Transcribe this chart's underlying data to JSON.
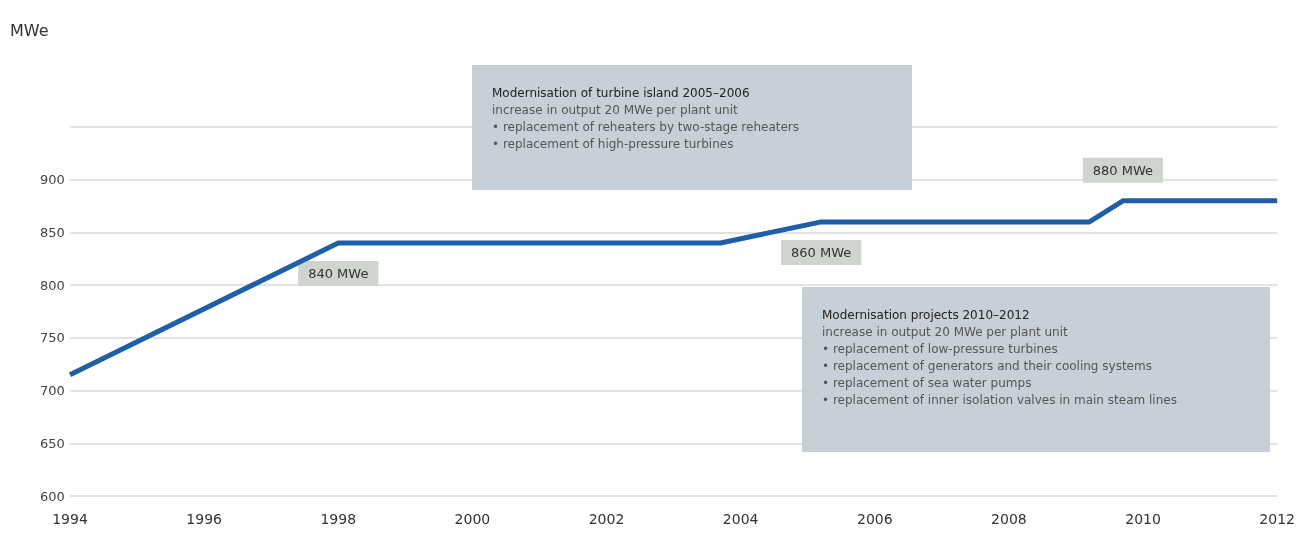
{
  "chart_data": {
    "type": "line",
    "x": [
      1994,
      1998,
      2003.7,
      2005.2,
      2009.2,
      2009.7,
      2012
    ],
    "series": [
      {
        "color": "#1f5fa8",
        "values": [
          715,
          840,
          840,
          860,
          860,
          880,
          880
        ]
      }
    ],
    "xlim": [
      1994,
      2012
    ],
    "xticks": [
      1994,
      1996,
      1998,
      2000,
      2002,
      2004,
      2006,
      2008,
      2010,
      2012
    ],
    "ylim": [
      600,
      950
    ],
    "yticks": [
      600,
      650,
      700,
      750,
      800,
      850,
      900,
      {
        "value": 950,
        "label": null
      }
    ],
    "grid": "y",
    "marker": "none",
    "line_style": "solid",
    "annotations": [
      "MWe",
      {
        "text": "840 MWe",
        "x": 1998,
        "y": 840
      },
      {
        "text": "860 MWe",
        "x": 2005.2,
        "y": 860
      },
      {
        "text": "880 MWe",
        "x": 2009.7,
        "y": 880
      },
      "Modernisation of turbine island 2005–2006\nincrease in output 20 MWe per plant unit\n• replacement of reheaters by two-stage reheaters\n• replacement of high-pressure turbines",
      "Modernisation projects 2010–2012\nincrease in output 20 MWe per plant unit\n• replacement of low-pressure turbines\n• replacement of generators and their cooling systems\n• replacement of sea water pumps\n• replacement of inner isolation valves in main steam lines"
    ]
  }
}
